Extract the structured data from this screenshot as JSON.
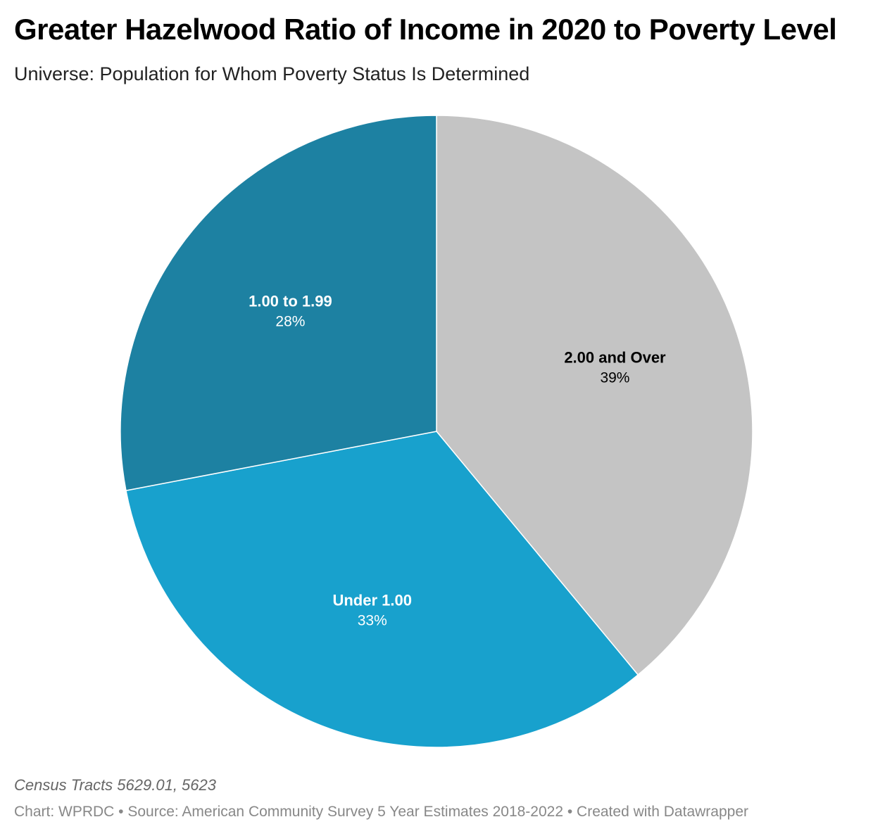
{
  "header": {
    "title": "Greater Hazelwood Ratio of Income in 2020 to Poverty Level",
    "subtitle": "Universe: Population for Whom Poverty Status Is Determined"
  },
  "footer": {
    "note": "Census Tracts 5629.01, 5623",
    "credits": "Chart: WPRDC • Source: American Community Survey 5 Year Estimates 2018-2022 • Created with Datawrapper"
  },
  "chart_data": {
    "type": "pie",
    "title": "Greater Hazelwood Ratio of Income in 2020 to Poverty Level",
    "subtitle": "Universe: Population for Whom Poverty Status Is Determined",
    "start": "12 o'clock",
    "direction": "clockwise",
    "slices": [
      {
        "label": "2.00 and Over",
        "value": 39,
        "display": "39%",
        "color": "#c4c4c4",
        "text_color": "#000000"
      },
      {
        "label": "Under 1.00",
        "value": 33,
        "display": "33%",
        "color": "#18a1cd",
        "text_color": "#ffffff"
      },
      {
        "label": "1.00 to 1.99",
        "value": 28,
        "display": "28%",
        "color": "#1d81a2",
        "text_color": "#ffffff"
      }
    ]
  }
}
